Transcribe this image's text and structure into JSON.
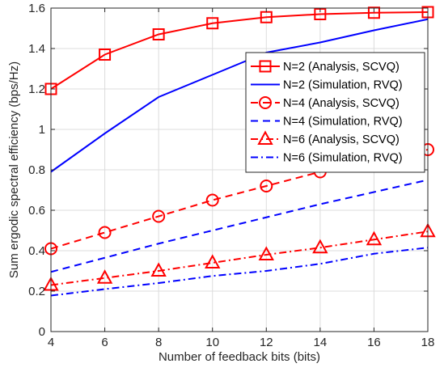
{
  "chart_data": {
    "type": "line",
    "title": "",
    "xlabel": "Number of feedback bits (bits)",
    "ylabel": "Sum ergodic spectral efficiency (bps/Hz)",
    "xlim": [
      4,
      18
    ],
    "ylim": [
      0,
      1.6
    ],
    "xticks": [
      4,
      6,
      8,
      10,
      12,
      14,
      16,
      18
    ],
    "yticks": [
      0,
      0.2,
      0.4,
      0.6,
      0.8,
      1,
      1.2,
      1.4,
      1.6
    ],
    "grid": true,
    "legend_position": "right",
    "series": [
      {
        "name": "N=2 (Analysis, SCVQ)",
        "color": "#ff0000",
        "line_style": "solid",
        "marker": "square",
        "x": [
          4,
          6,
          8,
          10,
          12,
          14,
          16,
          18
        ],
        "y": [
          1.2,
          1.37,
          1.47,
          1.525,
          1.555,
          1.57,
          1.577,
          1.58
        ]
      },
      {
        "name": "N=2 (Simulation, RVQ)",
        "color": "#0000ff",
        "line_style": "solid",
        "marker": "none",
        "x": [
          4,
          6,
          8,
          10,
          12,
          14,
          16,
          18
        ],
        "y": [
          0.79,
          0.98,
          1.16,
          1.27,
          1.38,
          1.43,
          1.49,
          1.545
        ]
      },
      {
        "name": "N=4 (Analysis, SCVQ)",
        "color": "#ff0000",
        "line_style": "dashed",
        "marker": "circle",
        "x": [
          4,
          6,
          8,
          10,
          12,
          14,
          16,
          18
        ],
        "y": [
          0.41,
          0.49,
          0.57,
          0.65,
          0.72,
          0.79,
          0.84,
          0.9
        ]
      },
      {
        "name": "N=4 (Simulation, RVQ)",
        "color": "#0000ff",
        "line_style": "dashed",
        "marker": "none",
        "x": [
          4,
          6,
          8,
          10,
          12,
          14,
          16,
          18
        ],
        "y": [
          0.295,
          0.365,
          0.435,
          0.5,
          0.565,
          0.63,
          0.69,
          0.75
        ]
      },
      {
        "name": "N=6 (Analysis, SCVQ)",
        "color": "#ff0000",
        "line_style": "dashdot",
        "marker": "triangle",
        "x": [
          4,
          6,
          8,
          10,
          12,
          14,
          16,
          18
        ],
        "y": [
          0.23,
          0.265,
          0.3,
          0.34,
          0.38,
          0.415,
          0.455,
          0.495
        ]
      },
      {
        "name": "N=6 (Simulation, RVQ)",
        "color": "#0000ff",
        "line_style": "dashdot",
        "marker": "none",
        "x": [
          4,
          6,
          8,
          10,
          12,
          14,
          16,
          18
        ],
        "y": [
          0.178,
          0.21,
          0.24,
          0.275,
          0.3,
          0.335,
          0.385,
          0.415
        ]
      }
    ]
  }
}
